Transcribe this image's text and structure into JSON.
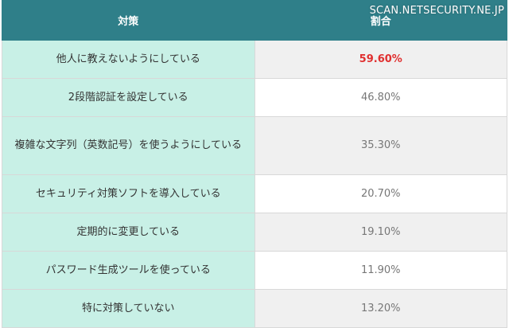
{
  "watermark": "SCAN.NETSECURITY.NE.JP",
  "table": {
    "header": [
      "対策",
      "割合"
    ],
    "rows": [
      [
        "他人に教えないようにしている",
        "59.60%"
      ],
      [
        "2段階認証を設定している",
        "46.80%"
      ],
      [
        "複雑な文字列（英数記号）を使うようにしている",
        "35.30%"
      ],
      [
        "セキュリティ対策ソフトを導入している",
        "20.70%"
      ],
      [
        "定期的に変更している",
        "19.10%"
      ],
      [
        "パスワード生成ツールを使っている",
        "11.90%"
      ],
      [
        "特に対策していない",
        "13.20%"
      ]
    ]
  }
}
